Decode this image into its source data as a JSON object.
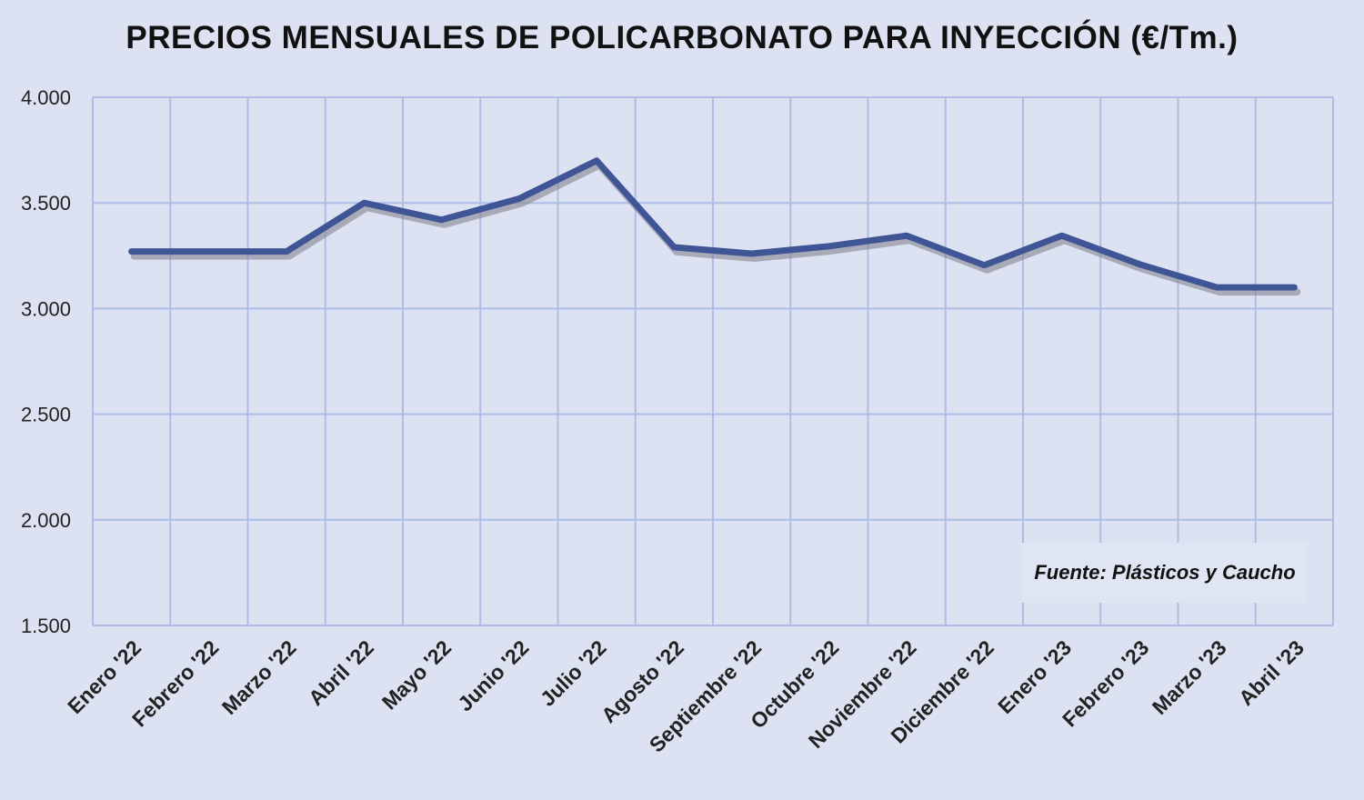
{
  "chart_data": {
    "type": "line",
    "title": "PRECIOS MENSUALES DE POLICARBONATO PARA INYECCIÓN (€/Tm.)",
    "xlabel": "",
    "ylabel": "",
    "categories": [
      "Enero '22",
      "Febrero '22",
      "Marzo '22",
      "Abril '22",
      "Mayo '22",
      "Junio '22",
      "Julio '22",
      "Agosto '22",
      "Septiembre '22",
      "Octubre '22",
      "Noviembre '22",
      "Diciembre '22",
      "Enero '23",
      "Febrero '23",
      "Marzo '23",
      "Abril '23"
    ],
    "series": [
      {
        "values": [
          3270,
          3270,
          3270,
          3500,
          3420,
          3520,
          3700,
          3290,
          3260,
          3295,
          3345,
          3205,
          3345,
          3210,
          3100,
          3100
        ]
      }
    ],
    "ylim": [
      1500,
      4000
    ],
    "yticks": [
      1500,
      2000,
      2500,
      3000,
      3500,
      4000
    ],
    "ytick_labels": [
      "1.500",
      "2.000",
      "2.500",
      "3.000",
      "3.500",
      "4.000"
    ],
    "grid": true,
    "legend": "none",
    "line_color": "#3f5596",
    "annotation": "Fuente: Plásticos y Caucho"
  }
}
